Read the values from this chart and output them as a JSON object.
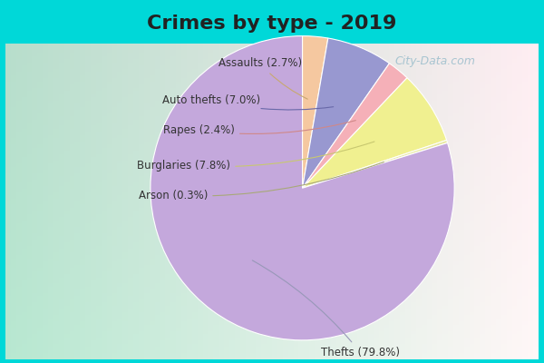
{
  "title": "Crimes by type - 2019",
  "labels": [
    "Thefts",
    "Arson",
    "Burglaries",
    "Rapes",
    "Auto thefts",
    "Assaults"
  ],
  "values": [
    79.8,
    0.3,
    7.8,
    2.4,
    7.0,
    2.7
  ],
  "wedge_colors": [
    "#c4a8dc",
    "#f0f0a0",
    "#f8f8b0",
    "#f5b0b8",
    "#9898d0",
    "#f5c8a0"
  ],
  "bg_outer": "#00d8d8",
  "label_color": "#333333",
  "title_color": "#222222",
  "title_fontsize": 16,
  "watermark": "City-Data.com",
  "label_fontsize": 8.5
}
